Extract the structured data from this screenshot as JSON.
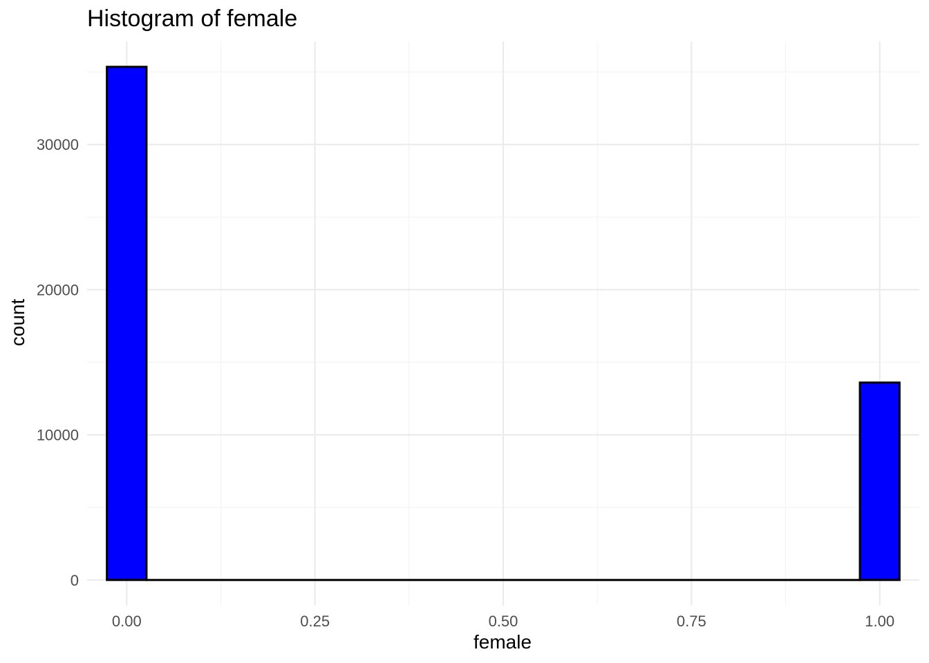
{
  "chart_data": {
    "type": "bar",
    "title": "Histogram of female",
    "xlabel": "female",
    "ylabel": "count",
    "x_ticks": [
      "0.00",
      "0.25",
      "0.50",
      "0.75",
      "1.00"
    ],
    "x_tick_values": [
      0,
      0.25,
      0.5,
      0.75,
      1.0
    ],
    "y_ticks": [
      "0",
      "10000",
      "20000",
      "30000"
    ],
    "y_tick_values": [
      0,
      10000,
      20000,
      30000
    ],
    "xlim": [
      -0.0526,
      1.0526
    ],
    "ylim": [
      -1770,
      37100
    ],
    "bin_width": 0.0526,
    "bins": [
      {
        "x0": -0.0263,
        "x1": 0.0263,
        "count": 35350
      },
      {
        "x0": 0.0263,
        "x1": 0.9737,
        "count": 0
      },
      {
        "x0": 0.9737,
        "x1": 1.0263,
        "count": 13600
      }
    ],
    "fill_color": "#0000ff",
    "outline_color": "#000000",
    "grid": true
  }
}
